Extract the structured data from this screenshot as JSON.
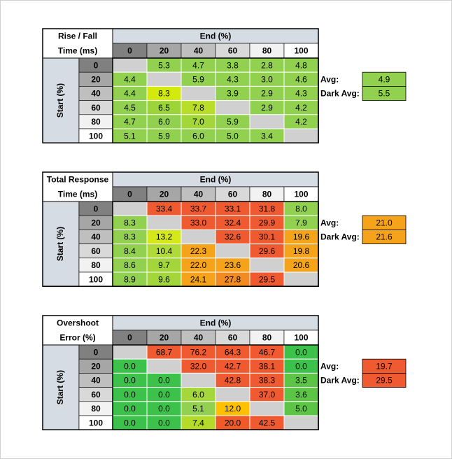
{
  "tables": [
    {
      "title": [
        "Rise / Fall",
        "Time (ms)"
      ],
      "column_group": "End (%)",
      "row_group": "Start (%)",
      "columns": [
        "0",
        "20",
        "40",
        "60",
        "80",
        "100"
      ],
      "rows": [
        "0",
        "20",
        "40",
        "60",
        "80",
        "100"
      ],
      "cells": [
        [
          null,
          "5.3",
          "4.7",
          "3.8",
          "2.8",
          "4.8"
        ],
        [
          "4.4",
          null,
          "5.9",
          "4.3",
          "3.0",
          "4.6"
        ],
        [
          "4.4",
          "8.3",
          null,
          "3.9",
          "2.9",
          "4.3"
        ],
        [
          "4.5",
          "6.5",
          "7.8",
          null,
          "2.9",
          "4.2"
        ],
        [
          "4.7",
          "6.0",
          "7.0",
          "5.9",
          null,
          "4.2"
        ],
        [
          "5.1",
          "5.9",
          "6.0",
          "5.0",
          "3.4",
          null
        ]
      ],
      "cell_colors": [
        [
          null,
          "#92d050",
          "#92d050",
          "#92d050",
          "#92d050",
          "#92d050"
        ],
        [
          "#92d050",
          null,
          "#92d050",
          "#92d050",
          "#92d050",
          "#92d050"
        ],
        [
          "#92d050",
          "#d4ea0c",
          null,
          "#92d050",
          "#92d050",
          "#92d050"
        ],
        [
          "#92d050",
          "#9cd43a",
          "#b8de2a",
          null,
          "#92d050",
          "#92d050"
        ],
        [
          "#92d050",
          "#92d050",
          "#a3d638",
          "#92d050",
          null,
          "#92d050"
        ],
        [
          "#92d050",
          "#92d050",
          "#92d050",
          "#92d050",
          "#92d050",
          null
        ]
      ],
      "avg": {
        "label": "Avg:",
        "value": "4.9",
        "color": "#92d050"
      },
      "dark_avg": {
        "label": "Dark Avg:",
        "value": "5.5",
        "color": "#92d050"
      }
    },
    {
      "title": [
        "Total Response",
        "Time (ms)"
      ],
      "column_group": "End (%)",
      "row_group": "Start (%)",
      "columns": [
        "0",
        "20",
        "40",
        "60",
        "80",
        "100"
      ],
      "rows": [
        "0",
        "20",
        "40",
        "60",
        "80",
        "100"
      ],
      "cells": [
        [
          null,
          "33.4",
          "33.7",
          "33.1",
          "31.8",
          "8.0"
        ],
        [
          "8.3",
          null,
          "33.0",
          "32.4",
          "29.9",
          "7.9"
        ],
        [
          "8.3",
          "13.2",
          null,
          "32.6",
          "30.1",
          "19.6"
        ],
        [
          "8.4",
          "10.4",
          "22.3",
          null,
          "29.6",
          "19.8"
        ],
        [
          "8.6",
          "9.7",
          "22.0",
          "23.6",
          null,
          "20.6"
        ],
        [
          "8.9",
          "9.6",
          "24.1",
          "27.8",
          "29.5",
          null
        ]
      ],
      "cell_colors": [
        [
          null,
          "#ef5a30",
          "#ef5a30",
          "#ef5a30",
          "#ef5a30",
          "#92d050"
        ],
        [
          "#92d050",
          null,
          "#ef5a30",
          "#ef5a30",
          "#ef5a30",
          "#92d050"
        ],
        [
          "#92d050",
          "#d4e81a",
          null,
          "#ef5a30",
          "#ef5a30",
          "#f5a31a"
        ],
        [
          "#92d050",
          "#b0d93a",
          "#f5a31a",
          null,
          "#ef5a30",
          "#f5a31a"
        ],
        [
          "#92d050",
          "#a3d63a",
          "#f5a31a",
          "#f5a31a",
          null,
          "#f5a31a"
        ],
        [
          "#92d050",
          "#a3d63a",
          "#f5a31a",
          "#f28b22",
          "#ef5a30",
          null
        ]
      ],
      "avg": {
        "label": "Avg:",
        "value": "21.0",
        "color": "#f5a31a"
      },
      "dark_avg": {
        "label": "Dark Avg:",
        "value": "21.6",
        "color": "#f5a31a"
      }
    },
    {
      "title": [
        "Overshoot",
        "Error (%)"
      ],
      "column_group": "End (%)",
      "row_group": "Start (%)",
      "columns": [
        "0",
        "20",
        "40",
        "60",
        "80",
        "100"
      ],
      "rows": [
        "0",
        "20",
        "40",
        "60",
        "80",
        "100"
      ],
      "cells": [
        [
          null,
          "68.7",
          "76.2",
          "64.3",
          "46.7",
          "0.0"
        ],
        [
          "0.0",
          null,
          "32.0",
          "42.7",
          "38.1",
          "0.0"
        ],
        [
          "0.0",
          "0.0",
          null,
          "42.8",
          "38.3",
          "3.5"
        ],
        [
          "0.0",
          "0.0",
          "6.0",
          null,
          "37.0",
          "3.6"
        ],
        [
          "0.0",
          "0.0",
          "5.1",
          "12.0",
          null,
          "5.0"
        ],
        [
          "0.0",
          "0.0",
          "7.4",
          "20.0",
          "42.5",
          null
        ]
      ],
      "cell_colors": [
        [
          null,
          "#ef5a30",
          "#ef5a30",
          "#ef5a30",
          "#ef5a30",
          "#3cc24a"
        ],
        [
          "#3cc24a",
          null,
          "#ef5a30",
          "#ef5a30",
          "#ef5a30",
          "#3cc24a"
        ],
        [
          "#3cc24a",
          "#3cc24a",
          null,
          "#ef5a30",
          "#ef5a30",
          "#5cc545"
        ],
        [
          "#3cc24a",
          "#3cc24a",
          "#a5d63a",
          null,
          "#ef5a30",
          "#5cc545"
        ],
        [
          "#3cc24a",
          "#3cc24a",
          "#92d050",
          "#ffc000",
          null,
          "#5cc545"
        ],
        [
          "#3cc24a",
          "#3cc24a",
          "#b5db2a",
          "#f05a28",
          "#ef5a30",
          null
        ]
      ],
      "avg": {
        "label": "Avg:",
        "value": "19.7",
        "color": "#ef5a30"
      },
      "dark_avg": {
        "label": "Dark Avg:",
        "value": "29.5",
        "color": "#ef5a30"
      }
    }
  ]
}
